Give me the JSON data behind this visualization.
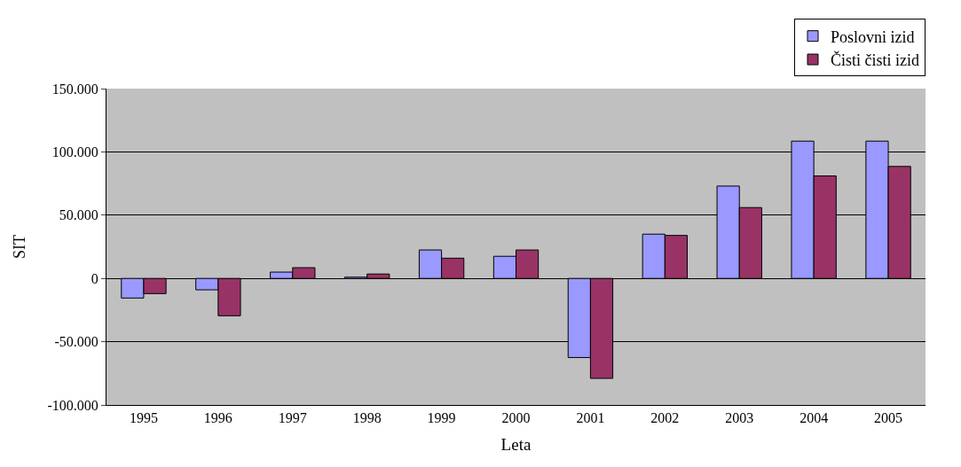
{
  "chart_data": {
    "type": "bar",
    "xlabel": "Leta",
    "ylabel": "SIT",
    "categories": [
      "1995",
      "1996",
      "1997",
      "1998",
      "1999",
      "2000",
      "2001",
      "2002",
      "2003",
      "2004",
      "2005"
    ],
    "series": [
      {
        "name": "Poslovni izid",
        "color": "#9999ff",
        "values": [
          -15500,
          -9000,
          5000,
          1000,
          22500,
          17500,
          -62500,
          35000,
          73000,
          108500,
          108500
        ]
      },
      {
        "name": "Čisti čisti izid",
        "color": "#993366",
        "values": [
          -12000,
          -29500,
          8500,
          3500,
          16000,
          22500,
          -79000,
          34000,
          56000,
          81000,
          88500
        ]
      }
    ],
    "ylim": [
      -100000,
      150000
    ],
    "yticks": [
      {
        "value": -100000,
        "label": "-100.000"
      },
      {
        "value": -50000,
        "label": "-50.000"
      },
      0,
      {
        "value": 50000,
        "label": "50.000"
      },
      {
        "value": 100000,
        "label": "100.000"
      },
      {
        "value": 150000,
        "label": "150.000"
      }
    ],
    "grid": "y",
    "legend": "top right"
  }
}
